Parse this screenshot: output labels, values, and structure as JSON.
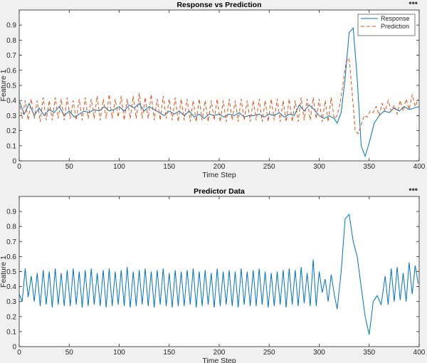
{
  "chart_data": [
    {
      "type": "line",
      "title": "Response vs Prediction",
      "xlabel": "Time Step",
      "ylabel": "Feature 1",
      "xlim": [
        0,
        400
      ],
      "ylim": [
        0,
        1
      ],
      "xticks": [
        0,
        50,
        100,
        150,
        200,
        250,
        300,
        350,
        400
      ],
      "yticks": [
        0,
        0.1,
        0.2,
        0.3,
        0.4,
        0.5,
        0.6,
        0.7,
        0.8,
        0.9
      ],
      "grid": false,
      "legend_position": "top-right",
      "menu_glyph": "•••",
      "series": [
        {
          "name": "Response",
          "color": "#0072bd",
          "style": "solid",
          "x": [
            0,
            5,
            10,
            15,
            20,
            25,
            30,
            35,
            40,
            45,
            50,
            55,
            60,
            65,
            70,
            75,
            80,
            85,
            90,
            95,
            100,
            105,
            110,
            115,
            120,
            125,
            130,
            135,
            140,
            145,
            150,
            155,
            160,
            165,
            170,
            175,
            180,
            185,
            190,
            195,
            200,
            205,
            210,
            215,
            220,
            225,
            230,
            235,
            240,
            245,
            250,
            255,
            260,
            265,
            270,
            275,
            280,
            285,
            290,
            295,
            300,
            305,
            310,
            315,
            318,
            322,
            326,
            330,
            334,
            338,
            342,
            346,
            350,
            355,
            360,
            365,
            370,
            375,
            380,
            385,
            390,
            395,
            400
          ],
          "y": [
            0.4,
            0.31,
            0.38,
            0.3,
            0.35,
            0.3,
            0.34,
            0.32,
            0.36,
            0.3,
            0.33,
            0.29,
            0.31,
            0.33,
            0.32,
            0.34,
            0.33,
            0.36,
            0.33,
            0.34,
            0.36,
            0.33,
            0.37,
            0.35,
            0.38,
            0.33,
            0.36,
            0.34,
            0.32,
            0.3,
            0.33,
            0.31,
            0.33,
            0.3,
            0.33,
            0.29,
            0.31,
            0.28,
            0.31,
            0.3,
            0.31,
            0.29,
            0.31,
            0.3,
            0.32,
            0.29,
            0.3,
            0.3,
            0.31,
            0.29,
            0.31,
            0.3,
            0.32,
            0.29,
            0.31,
            0.3,
            0.37,
            0.33,
            0.37,
            0.34,
            0.3,
            0.28,
            0.3,
            0.28,
            0.25,
            0.32,
            0.55,
            0.85,
            0.88,
            0.55,
            0.1,
            0.03,
            0.12,
            0.25,
            0.3,
            0.33,
            0.32,
            0.35,
            0.33,
            0.36,
            0.34,
            0.35,
            0.36
          ]
        },
        {
          "name": "Prediction",
          "color": "#d95319",
          "style": "dashed",
          "x": [
            0,
            3,
            6,
            9,
            12,
            15,
            18,
            21,
            24,
            27,
            30,
            33,
            36,
            39,
            42,
            45,
            48,
            51,
            54,
            57,
            60,
            63,
            66,
            69,
            72,
            75,
            78,
            81,
            84,
            87,
            90,
            93,
            96,
            99,
            102,
            105,
            108,
            111,
            114,
            117,
            120,
            123,
            126,
            129,
            132,
            135,
            138,
            141,
            144,
            147,
            150,
            153,
            156,
            159,
            162,
            165,
            168,
            171,
            174,
            177,
            180,
            183,
            186,
            189,
            192,
            195,
            198,
            201,
            204,
            207,
            210,
            213,
            216,
            219,
            222,
            225,
            228,
            231,
            234,
            237,
            240,
            243,
            246,
            249,
            252,
            255,
            258,
            261,
            264,
            267,
            270,
            273,
            276,
            279,
            282,
            285,
            288,
            291,
            294,
            297,
            300,
            303,
            306,
            309,
            312,
            315,
            318,
            321,
            324,
            327,
            330,
            333,
            336,
            339,
            342,
            345,
            348,
            351,
            354,
            357,
            360,
            363,
            366,
            369,
            372,
            375,
            378,
            381,
            384,
            387,
            390,
            393,
            396,
            399
          ],
          "y": [
            0.4,
            0.28,
            0.4,
            0.27,
            0.41,
            0.28,
            0.4,
            0.26,
            0.42,
            0.27,
            0.4,
            0.27,
            0.42,
            0.28,
            0.41,
            0.27,
            0.42,
            0.28,
            0.4,
            0.27,
            0.41,
            0.27,
            0.42,
            0.28,
            0.41,
            0.28,
            0.43,
            0.27,
            0.41,
            0.28,
            0.44,
            0.28,
            0.41,
            0.29,
            0.43,
            0.27,
            0.41,
            0.28,
            0.43,
            0.28,
            0.45,
            0.28,
            0.42,
            0.28,
            0.44,
            0.27,
            0.41,
            0.27,
            0.43,
            0.28,
            0.41,
            0.27,
            0.42,
            0.26,
            0.41,
            0.27,
            0.41,
            0.26,
            0.4,
            0.26,
            0.41,
            0.27,
            0.4,
            0.26,
            0.4,
            0.27,
            0.41,
            0.26,
            0.4,
            0.26,
            0.41,
            0.27,
            0.4,
            0.26,
            0.41,
            0.27,
            0.4,
            0.26,
            0.4,
            0.27,
            0.41,
            0.26,
            0.4,
            0.26,
            0.41,
            0.27,
            0.41,
            0.26,
            0.4,
            0.26,
            0.41,
            0.26,
            0.4,
            0.26,
            0.42,
            0.27,
            0.41,
            0.27,
            0.42,
            0.28,
            0.41,
            0.26,
            0.4,
            0.26,
            0.42,
            0.28,
            0.3,
            0.38,
            0.52,
            0.66,
            0.68,
            0.45,
            0.2,
            0.18,
            0.24,
            0.3,
            0.29,
            0.33,
            0.32,
            0.36,
            0.3,
            0.38,
            0.33,
            0.4,
            0.33,
            0.37,
            0.31,
            0.4,
            0.33,
            0.41,
            0.34,
            0.44,
            0.36,
            0.41
          ]
        }
      ]
    },
    {
      "type": "line",
      "title": "Predictor Data",
      "xlabel": "Time Step",
      "ylabel": "Feature 1",
      "xlim": [
        0,
        400
      ],
      "ylim": [
        0,
        1
      ],
      "xticks": [
        0,
        50,
        100,
        150,
        200,
        250,
        300,
        350,
        400
      ],
      "yticks": [
        0,
        0.1,
        0.2,
        0.3,
        0.4,
        0.5,
        0.6,
        0.7,
        0.8,
        0.9
      ],
      "grid": false,
      "menu_glyph": "•••",
      "series": [
        {
          "color": "#0072bd",
          "style": "solid",
          "x": [
            0,
            3,
            6,
            9,
            12,
            15,
            18,
            21,
            24,
            27,
            30,
            33,
            36,
            39,
            42,
            45,
            48,
            51,
            54,
            57,
            60,
            63,
            66,
            69,
            72,
            75,
            78,
            81,
            84,
            87,
            90,
            93,
            96,
            99,
            102,
            105,
            108,
            111,
            114,
            117,
            120,
            123,
            126,
            129,
            132,
            135,
            138,
            141,
            144,
            147,
            150,
            153,
            156,
            159,
            162,
            165,
            168,
            171,
            174,
            177,
            180,
            183,
            186,
            189,
            192,
            195,
            198,
            201,
            204,
            207,
            210,
            213,
            216,
            219,
            222,
            225,
            228,
            231,
            234,
            237,
            240,
            243,
            246,
            249,
            252,
            255,
            258,
            261,
            264,
            267,
            270,
            273,
            276,
            279,
            282,
            285,
            288,
            291,
            294,
            297,
            300,
            303,
            306,
            309,
            312,
            315,
            318,
            322,
            326,
            330,
            334,
            338,
            342,
            346,
            350,
            354,
            358,
            362,
            366,
            369,
            372,
            375,
            378,
            381,
            384,
            387,
            390,
            393,
            396,
            399
          ],
          "y": [
            0.35,
            0.3,
            0.52,
            0.33,
            0.47,
            0.3,
            0.49,
            0.27,
            0.51,
            0.28,
            0.5,
            0.26,
            0.52,
            0.28,
            0.49,
            0.27,
            0.51,
            0.27,
            0.52,
            0.28,
            0.5,
            0.26,
            0.51,
            0.27,
            0.52,
            0.28,
            0.49,
            0.27,
            0.51,
            0.26,
            0.52,
            0.27,
            0.5,
            0.28,
            0.51,
            0.27,
            0.53,
            0.26,
            0.5,
            0.27,
            0.51,
            0.28,
            0.52,
            0.27,
            0.5,
            0.26,
            0.51,
            0.28,
            0.52,
            0.27,
            0.49,
            0.26,
            0.51,
            0.27,
            0.5,
            0.27,
            0.51,
            0.28,
            0.52,
            0.26,
            0.5,
            0.27,
            0.51,
            0.28,
            0.49,
            0.26,
            0.52,
            0.27,
            0.5,
            0.28,
            0.51,
            0.27,
            0.5,
            0.26,
            0.52,
            0.28,
            0.5,
            0.27,
            0.51,
            0.27,
            0.52,
            0.28,
            0.5,
            0.26,
            0.49,
            0.27,
            0.5,
            0.28,
            0.51,
            0.26,
            0.52,
            0.28,
            0.51,
            0.27,
            0.53,
            0.29,
            0.49,
            0.27,
            0.58,
            0.27,
            0.5,
            0.36,
            0.45,
            0.3,
            0.48,
            0.35,
            0.25,
            0.5,
            0.85,
            0.88,
            0.7,
            0.6,
            0.4,
            0.2,
            0.08,
            0.3,
            0.34,
            0.28,
            0.47,
            0.28,
            0.52,
            0.3,
            0.53,
            0.31,
            0.49,
            0.3,
            0.56,
            0.35,
            0.54,
            0.42
          ]
        }
      ]
    }
  ]
}
